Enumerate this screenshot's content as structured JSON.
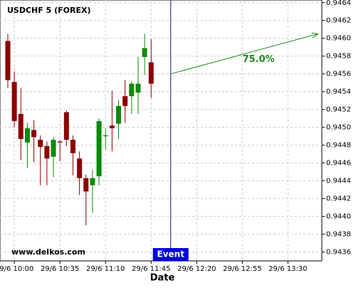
{
  "chart_data": {
    "type": "candlestick",
    "title": "USDCHF 5 (FOREX)",
    "watermark": "www.delkos.com",
    "x_label": "Date",
    "x": [
      "29/6 09:55",
      "29/6 10:00",
      "29/6 10:05",
      "29/6 10:10",
      "29/6 10:15",
      "29/6 10:20",
      "29/6 10:25",
      "29/6 10:30",
      "29/6 10:35",
      "29/6 10:40",
      "29/6 10:45",
      "29/6 10:50",
      "29/6 10:55",
      "29/6 11:00",
      "29/6 11:05",
      "29/6 11:10",
      "29/6 11:15",
      "29/6 11:20",
      "29/6 11:25",
      "29/6 11:30",
      "29/6 11:35",
      "29/6 11:40",
      "29/6 11:45"
    ],
    "open": [
      0.94597,
      0.94551,
      0.94515,
      0.94483,
      0.94497,
      0.94486,
      0.94479,
      0.94467,
      0.94484,
      0.94517,
      0.94486,
      0.94465,
      0.94443,
      0.94435,
      0.94445,
      0.9449,
      0.94502,
      0.94504,
      0.94535,
      0.94535,
      0.94539,
      0.94579,
      0.94573
    ],
    "high": [
      0.94605,
      0.94563,
      0.94544,
      0.94505,
      0.94508,
      0.94491,
      0.94484,
      0.94489,
      0.94486,
      0.94519,
      0.94491,
      0.94473,
      0.94447,
      0.94452,
      0.9451,
      0.94499,
      0.94541,
      0.94531,
      0.94553,
      0.94552,
      0.94579,
      0.94605,
      0.94599
    ],
    "low": [
      0.94544,
      0.945,
      0.94463,
      0.94454,
      0.94461,
      0.94435,
      0.94435,
      0.94444,
      0.94462,
      0.94479,
      0.94446,
      0.94424,
      0.9439,
      0.94404,
      0.94435,
      0.94475,
      0.94473,
      0.94487,
      0.94505,
      0.94515,
      0.94515,
      0.94559,
      0.94533
    ],
    "close": [
      0.94553,
      0.94507,
      0.94487,
      0.94499,
      0.94489,
      0.94478,
      0.94465,
      0.94486,
      0.94483,
      0.94486,
      0.94471,
      0.94443,
      0.94428,
      0.94443,
      0.94507,
      0.94491,
      0.94499,
      0.94524,
      0.94524,
      0.94549,
      0.94549,
      0.94589,
      0.94549
    ],
    "up_color": "#0a8a0a",
    "down_color": "#8b0000",
    "xlim": [
      "29/6 09:49",
      "29/6 13:56"
    ],
    "xticks": [
      "29/6 10:00",
      "29/6 10:35",
      "29/6 11:10",
      "29/6 11:45",
      "29/6 12:20",
      "29/6 12:55",
      "29/6 13:30"
    ],
    "ylim": [
      0.9435,
      0.94643
    ],
    "yticks": [
      0.9436,
      0.9438,
      {
        "value": 0.944,
        "label": "0.9440"
      },
      0.9442,
      0.9444,
      0.9446,
      0.9448,
      {
        "value": 0.945,
        "label": "0.9450"
      },
      0.9452,
      0.9454,
      0.9456,
      0.9458,
      {
        "value": 0.946,
        "label": "0.9460"
      },
      0.9462,
      0.9464
    ],
    "grid": true,
    "event": {
      "x": "29/6 12:00",
      "label": "Event"
    },
    "forecast": {
      "x": [
        "29/6 12:00",
        "29/6 13:53"
      ],
      "values": [
        0.9456,
        0.94605
      ],
      "label": "75.0%",
      "color": "#1a8a1a"
    }
  }
}
